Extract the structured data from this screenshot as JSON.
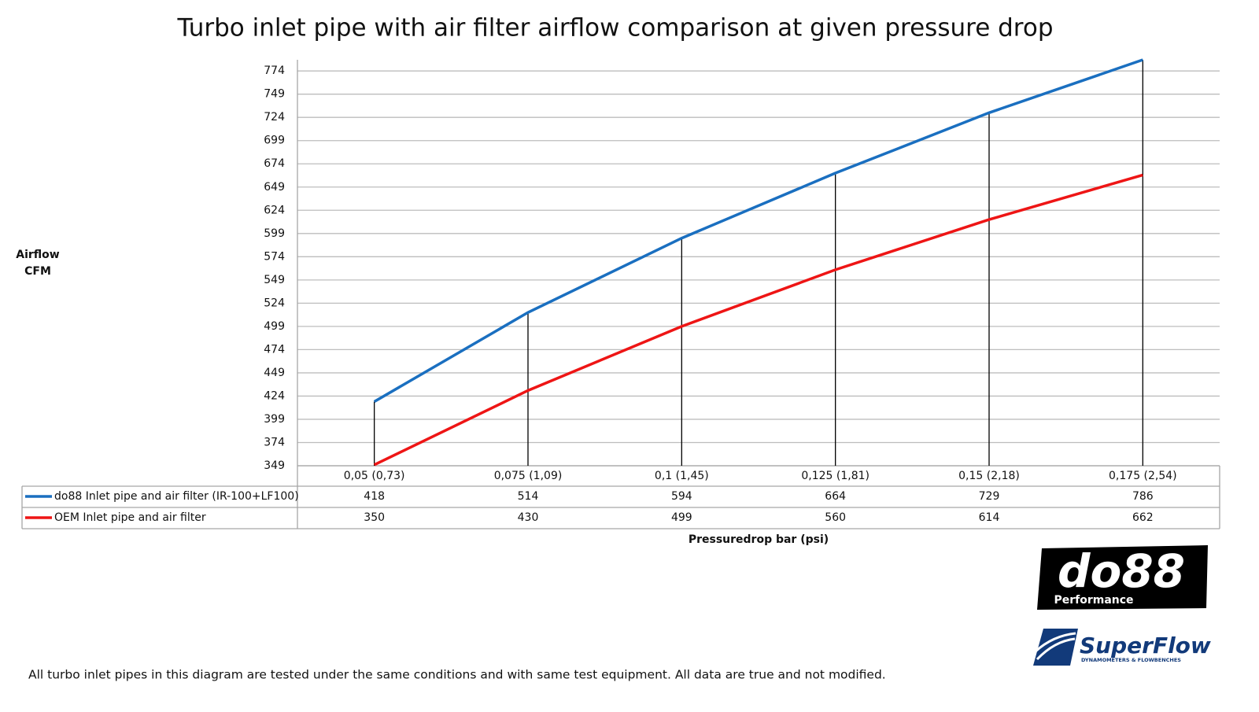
{
  "chart_data": {
    "type": "line",
    "title": "Turbo inlet pipe with air filter airflow comparison at given pressure drop",
    "y_label": [
      "Airflow",
      "CFM"
    ],
    "x_label": "Pressuredrop bar (psi)",
    "categories": [
      "0,05 (0,73)",
      "0,075 (1,09)",
      "0,1 (1,45)",
      "0,125 (1,81)",
      "0,15 (2,18)",
      "0,175 (2,54)"
    ],
    "series": [
      {
        "name": "do88 Inlet pipe and air filter (IR-100+LF100)",
        "color": "#1a6fc0",
        "values": [
          418,
          514,
          594,
          664,
          729,
          786
        ]
      },
      {
        "name": "OEM Inlet pipe and air filter",
        "color": "#ee1515",
        "values": [
          350,
          430,
          499,
          560,
          614,
          662
        ]
      }
    ],
    "ylim": [
      349,
      786
    ],
    "yticks": [
      349,
      374,
      399,
      424,
      449,
      474,
      499,
      524,
      549,
      574,
      599,
      624,
      649,
      674,
      699,
      724,
      749,
      774
    ],
    "grid": true,
    "drop_lines": true,
    "legend": "data-table"
  },
  "footnote": "All turbo inlet pipes in this diagram are tested under the same conditions and with same test equipment. All data are true and not modified.",
  "logos": {
    "do88": "do88",
    "do88_sub": "Performance",
    "superflow": "SuperFlow",
    "superflow_sub": "DYNAMOMETERS & FLOWBENCHES"
  }
}
